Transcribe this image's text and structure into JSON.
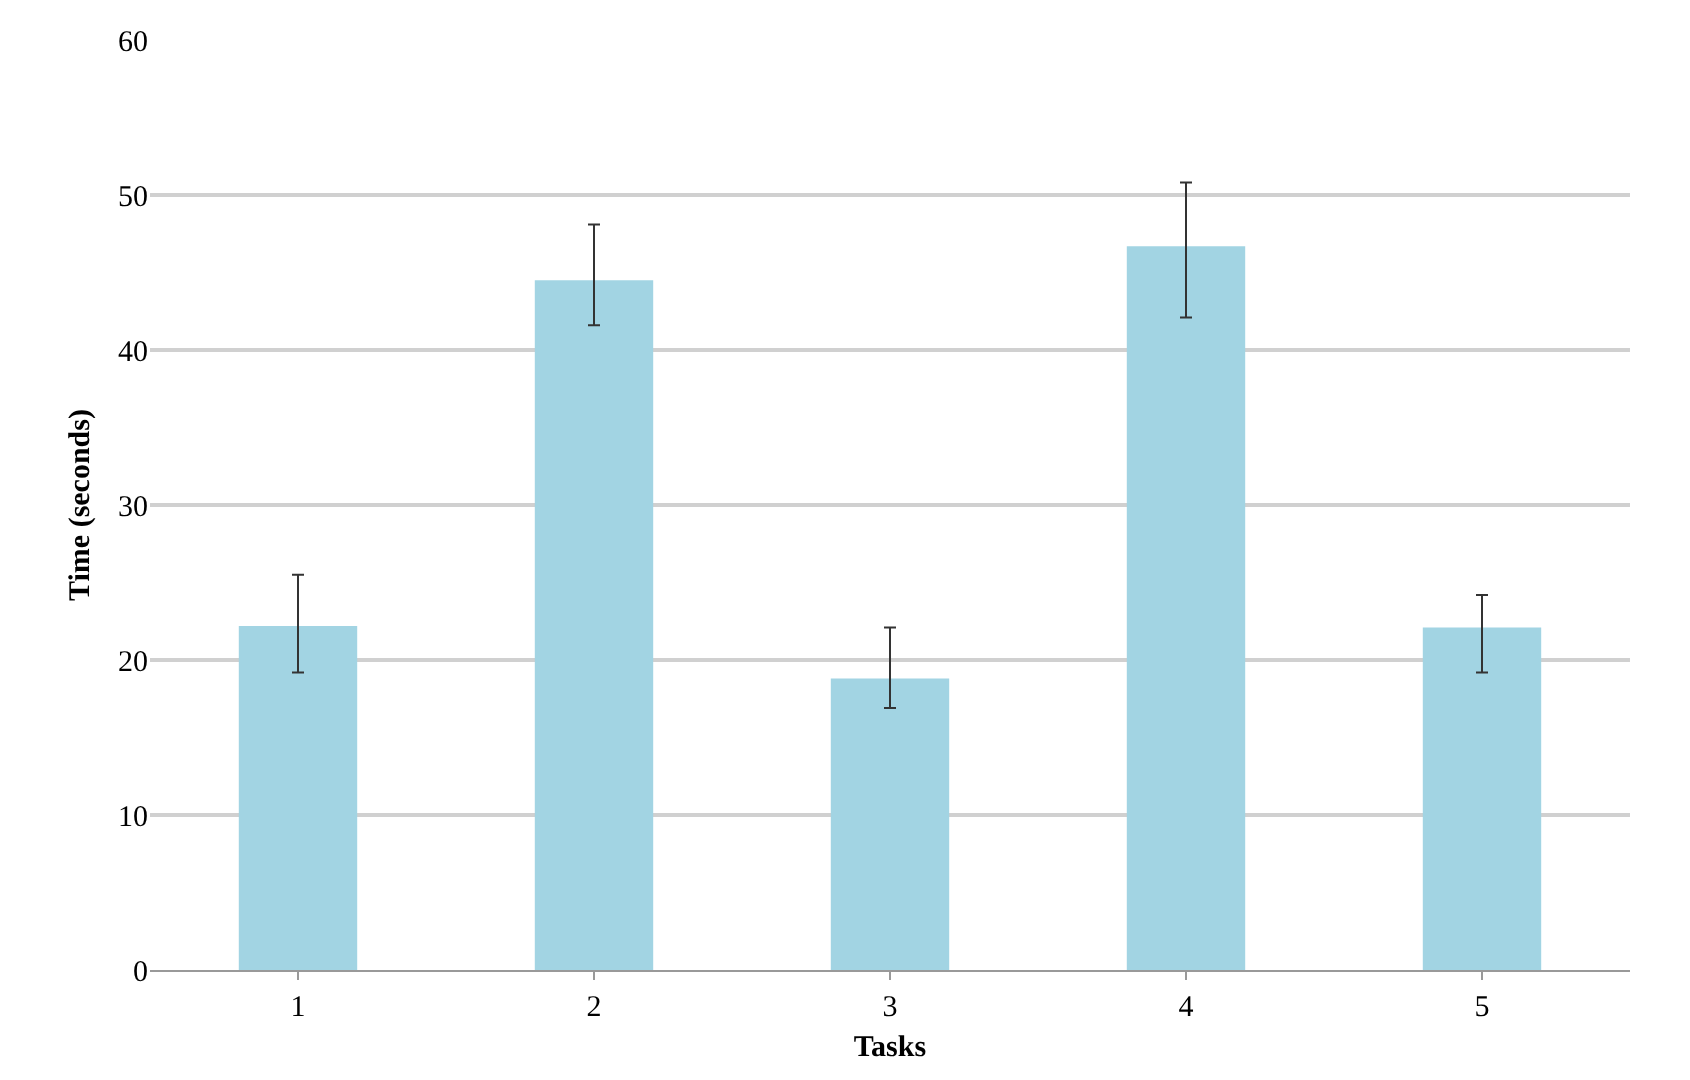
{
  "chart_data": {
    "type": "bar",
    "xlabel": "Tasks",
    "ylabel": "Time (seconds)",
    "categories": [
      "1",
      "2",
      "3",
      "4",
      "5"
    ],
    "values": [
      22.2,
      44.5,
      18.8,
      46.7,
      22.1
    ],
    "errors": [
      [
        19.2,
        25.5
      ],
      [
        41.6,
        48.1
      ],
      [
        16.9,
        22.1
      ],
      [
        42.1,
        50.8
      ],
      [
        19.2,
        24.2
      ]
    ],
    "color": "#a2d4e3",
    "ylim": [
      0,
      60
    ],
    "yticks": [
      0,
      10,
      20,
      30,
      40,
      50,
      60
    ],
    "grid": "y"
  }
}
